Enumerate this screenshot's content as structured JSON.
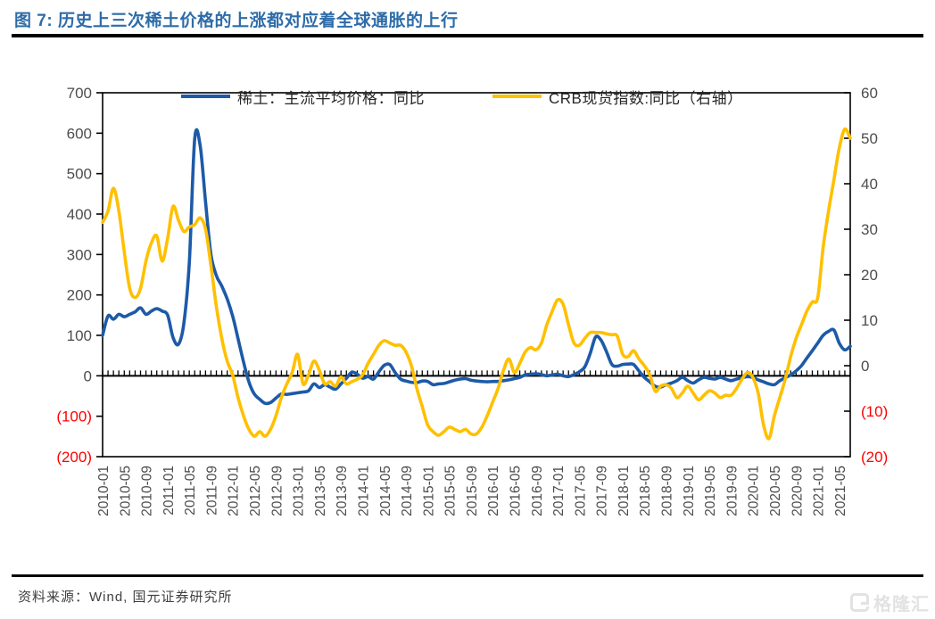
{
  "title": "图 7: 历史上三次稀土价格的上涨都对应着全球通胀的上行",
  "source": "资料来源：Wind, 国元证券研究所",
  "watermark": {
    "text": "格隆汇",
    "icon": "gelonghui-logo"
  },
  "colors": {
    "title_blue": "#2e6ca8",
    "series_blue": "#1d5aa8",
    "series_yellow": "#ffc000",
    "negative_red": "#ff0000",
    "axis_label_gray": "#4d4d4d",
    "watermark_gray": "#e2e2e2"
  },
  "chart_data": {
    "type": "line",
    "title": "历史上三次稀土价格的上涨都对应着全球通胀的上行",
    "grid": false,
    "legend_position": "top-center",
    "legend": [
      {
        "name": "稀土：主流平均价格：同比",
        "axis": "left",
        "color_key": "series_blue"
      },
      {
        "name": "CRB现货指数:同比（右轴）",
        "axis": "right",
        "color_key": "series_yellow"
      }
    ],
    "left_axis": {
      "tick_labels": [
        "700",
        "600",
        "500",
        "400",
        "300",
        "200",
        "100",
        "0",
        "(100)",
        "(200)"
      ],
      "tick_values": [
        700,
        600,
        500,
        400,
        300,
        200,
        100,
        0,
        -100,
        -200
      ],
      "range": [
        -200,
        700
      ]
    },
    "right_axis": {
      "tick_labels": [
        "60",
        "50",
        "40",
        "30",
        "20",
        "10",
        "0",
        "(10)",
        "(20)"
      ],
      "tick_values": [
        60,
        50,
        40,
        30,
        20,
        10,
        0,
        -10,
        -20
      ],
      "range": [
        -20,
        60
      ]
    },
    "x_tick_labels": [
      "2010-01",
      "2010-05",
      "2010-09",
      "2011-01",
      "2011-05",
      "2011-09",
      "2012-01",
      "2012-05",
      "2012-09",
      "2013-01",
      "2013-05",
      "2013-09",
      "2014-01",
      "2014-05",
      "2014-09",
      "2015-01",
      "2015-05",
      "2015-09",
      "2016-01",
      "2016-05",
      "2016-09",
      "2017-01",
      "2017-05",
      "2017-09",
      "2018-01",
      "2018-05",
      "2018-09",
      "2019-01",
      "2019-05",
      "2019-09",
      "2020-01",
      "2020-05",
      "2020-09",
      "2021-01",
      "2021-05"
    ],
    "x_span": {
      "start": "2010-01",
      "end": "2021-07",
      "step_months": 1,
      "label_every": 4
    },
    "series": [
      {
        "name": "稀土：主流平均价格：同比",
        "axis": "left",
        "values": [
          100,
          148,
          140,
          152,
          146,
          152,
          158,
          168,
          152,
          160,
          166,
          160,
          150,
          95,
          78,
          130,
          280,
          585,
          570,
          430,
          300,
          248,
          222,
          190,
          148,
          92,
          35,
          -15,
          -45,
          -58,
          -68,
          -66,
          -55,
          -45,
          -46,
          -44,
          -42,
          -40,
          -37,
          -20,
          -29,
          -22,
          -28,
          -33,
          -20,
          -6,
          9,
          4,
          -6,
          -2,
          -8,
          10,
          26,
          28,
          8,
          -8,
          -13,
          -16,
          -17,
          -13,
          -14,
          -22,
          -20,
          -19,
          -15,
          -11,
          -8,
          -7,
          -11,
          -13,
          -14,
          -15,
          -14,
          -14,
          -12,
          -10,
          -7,
          -4,
          2,
          4,
          5,
          3,
          0,
          2,
          4,
          0,
          -2,
          3,
          10,
          22,
          55,
          96,
          88,
          60,
          28,
          24,
          28,
          29,
          28,
          12,
          -4,
          -15,
          -26,
          -28,
          -22,
          -18,
          -12,
          -4,
          -12,
          -18,
          -10,
          -4,
          -6,
          -8,
          -4,
          -8,
          -12,
          -8,
          -5,
          -2,
          -4,
          -10,
          -15,
          -20,
          -22,
          -12,
          -5,
          2,
          12,
          25,
          44,
          62,
          81,
          100,
          110,
          113,
          80,
          64,
          73
        ]
      },
      {
        "name": "CRB现货指数:同比（右轴）",
        "axis": "right",
        "values": [
          31.5,
          34,
          39,
          34,
          25,
          17,
          15,
          17,
          23,
          27,
          28.5,
          23,
          28,
          35,
          32,
          29.5,
          30.5,
          31,
          32.5,
          30,
          22,
          13,
          6,
          1,
          -2,
          -7,
          -11,
          -14,
          -15.5,
          -14.5,
          -15.5,
          -14,
          -11,
          -7,
          -4,
          -1.5,
          2.5,
          -4,
          -2,
          1,
          -1,
          -4,
          -3.5,
          -4.5,
          -2.5,
          -4,
          -3.5,
          -3,
          -2,
          0.5,
          2.5,
          4.5,
          5.5,
          5,
          4.5,
          4.5,
          3,
          0,
          -5,
          -9,
          -13,
          -14.5,
          -15.3,
          -14.5,
          -13.5,
          -14,
          -14.5,
          -14,
          -15,
          -15,
          -13.5,
          -11,
          -8,
          -5,
          -1,
          1.5,
          -1.5,
          0.5,
          3,
          4,
          3.5,
          5,
          9,
          12,
          14.5,
          13.5,
          9,
          5,
          4.5,
          6,
          7.3,
          7.3,
          7.3,
          7,
          6.8,
          6.5,
          2.5,
          2,
          3.3,
          1.5,
          0,
          -2,
          -5.6,
          -4.5,
          -4.2,
          -5,
          -7,
          -6,
          -4.5,
          -6,
          -7.5,
          -6.5,
          -5.5,
          -6,
          -7,
          -6.5,
          -6.5,
          -5,
          -3,
          -1.5,
          -2.5,
          -6,
          -13,
          -16,
          -11,
          -7,
          -3,
          2,
          6,
          9,
          12,
          14,
          15,
          26,
          34,
          41,
          48,
          52,
          50
        ]
      }
    ]
  }
}
